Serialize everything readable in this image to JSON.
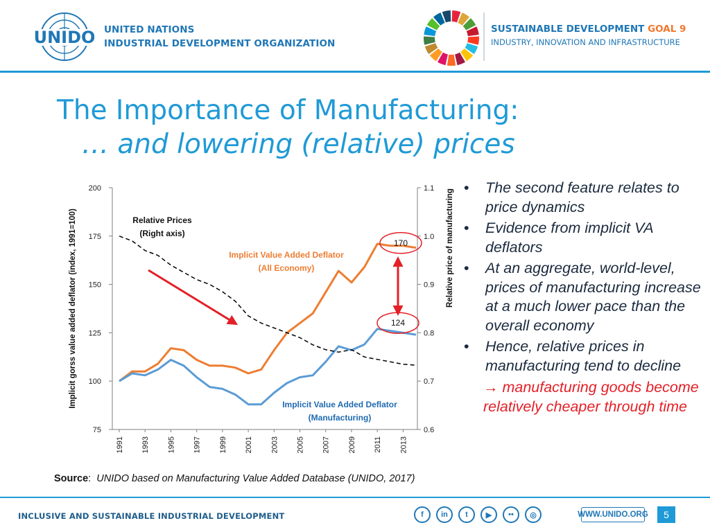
{
  "header": {
    "org_line1": "UNITED NATIONS",
    "org_line2": "INDUSTRIAL DEVELOPMENT ORGANIZATION",
    "logo_text": "UNIDO",
    "sdg_line1_a": "SUSTAINABLE DEVELOPMENT ",
    "sdg_line1_b": "GOAL 9",
    "sdg_line2": "INDUSTRY, INNOVATION AND INFRASTRUCTURE"
  },
  "title": {
    "line1": "The Importance of Manufacturing:",
    "line2": "… and lowering (relative) prices"
  },
  "bullets": [
    "The second feature relates to price dynamics",
    "Evidence from implicit VA deflators",
    "At an aggregate, world-level, prices of manufacturing increase at a much lower pace than the overall economy",
    "Hence, relative prices in manufacturing tend to decline"
  ],
  "bullet_symbol": "•",
  "conclusion": "→ manufacturing goods become relatively cheaper through time",
  "source": {
    "label": "Source",
    "text": "UNIDO based on Manufacturing Value Added Database (UNIDO, 2017)"
  },
  "footer": {
    "tagline": "INCLUSIVE AND SUSTAINABLE INDUSTRIAL DEVELOPMENT",
    "url": "WWW.UNIDO.ORG",
    "page": "5",
    "social": [
      {
        "name": "facebook-icon",
        "glyph": "f"
      },
      {
        "name": "linkedin-icon",
        "glyph": "in"
      },
      {
        "name": "twitter-icon",
        "glyph": "t"
      },
      {
        "name": "youtube-icon",
        "glyph": "▶"
      },
      {
        "name": "flickr-icon",
        "glyph": "••"
      },
      {
        "name": "instagram-icon",
        "glyph": "◎"
      }
    ]
  },
  "chart_data": {
    "type": "line",
    "x": [
      1991,
      1992,
      1993,
      1994,
      1995,
      1996,
      1997,
      1998,
      1999,
      2000,
      2001,
      2002,
      2003,
      2004,
      2005,
      2006,
      2007,
      2008,
      2009,
      2010,
      2011,
      2012,
      2013,
      2014
    ],
    "x_tick_labels": [
      "1991",
      "1993",
      "1995",
      "1997",
      "1999",
      "2001",
      "2003",
      "2005",
      "2007",
      "2009",
      "2011",
      "2013"
    ],
    "y_left": {
      "label": "Implicit gorss value added deflator (index, 1991=100)",
      "ticks": [
        "75",
        "100",
        "125",
        "150",
        "175",
        "200"
      ],
      "lim": [
        75,
        200
      ]
    },
    "y_right": {
      "label": "Relative price of manufacturing",
      "ticks": [
        "0.6",
        "0.7",
        "0.8",
        "0.9",
        "1.0",
        "1.1"
      ],
      "lim": [
        0.6,
        1.1
      ]
    },
    "series": [
      {
        "name": "Implicit Value Added Deflator (All Economy)",
        "label_line1": "Implicit Value Added Deflator",
        "label_line2": "(All Economy)",
        "color": "#ed7d31",
        "axis": "left",
        "values": [
          100,
          105,
          105,
          109,
          117,
          116,
          111,
          108,
          108,
          107,
          104,
          106,
          116,
          125,
          130,
          135,
          146,
          157,
          151,
          159,
          171,
          170,
          170,
          169
        ]
      },
      {
        "name": "Implicit Value Added Deflator (Manufacturing)",
        "label_line1": "Implicit Value Added Deflator",
        "label_line2": "(Manufacturing)",
        "color": "#5b9bd5",
        "axis": "left",
        "values": [
          100,
          104,
          103,
          106,
          111,
          108,
          102,
          97,
          96,
          93,
          88,
          88,
          94,
          99,
          102,
          103,
          110,
          118,
          116,
          119,
          127,
          126,
          125,
          124
        ]
      },
      {
        "name": "Relative Prices (Right axis)",
        "label_line1": "Relative Prices",
        "label_line2": "(Right axis)",
        "color": "#000000",
        "axis": "right",
        "style": "dashed",
        "values": [
          1.0,
          0.99,
          0.97,
          0.96,
          0.94,
          0.925,
          0.91,
          0.9,
          0.885,
          0.865,
          0.835,
          0.82,
          0.81,
          0.8,
          0.79,
          0.775,
          0.765,
          0.76,
          0.765,
          0.75,
          0.745,
          0.74,
          0.735,
          0.733
        ]
      }
    ],
    "annotations": [
      {
        "text": "170",
        "type": "circled",
        "at_value": 170
      },
      {
        "text": "124",
        "type": "circled",
        "at_value": 124
      }
    ]
  }
}
